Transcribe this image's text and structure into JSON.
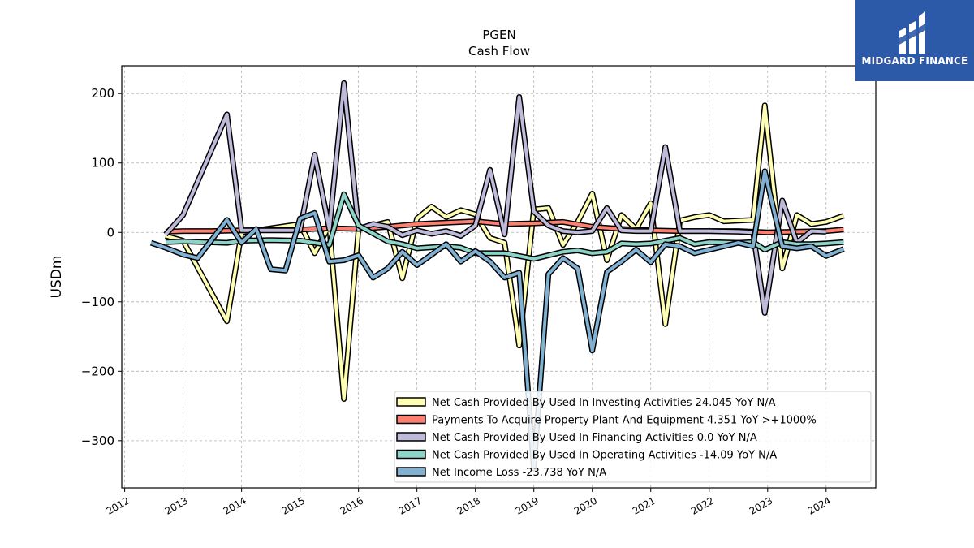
{
  "chart_data": {
    "type": "line",
    "title": "PGEN",
    "subtitle": "Cash Flow",
    "ylabel": "USDm",
    "xlabel": "",
    "ylim": [
      -368,
      240
    ],
    "xlim": [
      2011.95,
      2024.85
    ],
    "yticks": [
      200,
      100,
      0,
      -100,
      -200,
      -300
    ],
    "ytick_labels": [
      "200",
      "100",
      "0",
      "−100",
      "−200",
      "−300"
    ],
    "xticks": [
      2012,
      2013,
      2014,
      2015,
      2016,
      2017,
      2018,
      2019,
      2020,
      2021,
      2022,
      2023,
      2024
    ],
    "xtick_labels": [
      "2012",
      "2013",
      "2014",
      "2015",
      "2016",
      "2017",
      "2018",
      "2019",
      "2020",
      "2021",
      "2022",
      "2023",
      "2024"
    ],
    "grid": true,
    "legend_position": "lower-right",
    "series": [
      {
        "name": "Net Cash Provided By Used In Investing Activities  24.045 YoY N/A",
        "color": "#ffffb3",
        "points": [
          [
            2012.7,
            -5
          ],
          [
            2013.0,
            -12
          ],
          [
            2013.75,
            -128
          ],
          [
            2014.0,
            0
          ],
          [
            2015.0,
            12
          ],
          [
            2015.25,
            -30
          ],
          [
            2015.5,
            10
          ],
          [
            2015.75,
            -240
          ],
          [
            2016.0,
            5
          ],
          [
            2016.5,
            15
          ],
          [
            2016.75,
            -66
          ],
          [
            2017.0,
            20
          ],
          [
            2017.25,
            37
          ],
          [
            2017.5,
            22
          ],
          [
            2017.75,
            32
          ],
          [
            2018.0,
            26
          ],
          [
            2018.25,
            -8
          ],
          [
            2018.5,
            -15
          ],
          [
            2018.75,
            -163
          ],
          [
            2019.0,
            33
          ],
          [
            2019.25,
            35
          ],
          [
            2019.5,
            -18
          ],
          [
            2019.75,
            15
          ],
          [
            2020.0,
            56
          ],
          [
            2020.25,
            -40
          ],
          [
            2020.5,
            25
          ],
          [
            2020.75,
            5
          ],
          [
            2021.0,
            42
          ],
          [
            2021.25,
            -132
          ],
          [
            2021.5,
            17
          ],
          [
            2021.75,
            22
          ],
          [
            2022.0,
            25
          ],
          [
            2022.25,
            16
          ],
          [
            2022.75,
            18
          ],
          [
            2022.95,
            183
          ],
          [
            2023.25,
            -52
          ],
          [
            2023.5,
            25
          ],
          [
            2023.75,
            12
          ],
          [
            2024.0,
            15
          ],
          [
            2024.3,
            24
          ]
        ]
      },
      {
        "name": "Payments To Acquire Property Plant And Equipment  4.351 YoY >+1000%",
        "color": "#fb8072",
        "points": [
          [
            2012.7,
            1
          ],
          [
            2013.0,
            2
          ],
          [
            2013.5,
            2
          ],
          [
            2014.0,
            3
          ],
          [
            2015.0,
            4
          ],
          [
            2015.5,
            6
          ],
          [
            2016.0,
            5
          ],
          [
            2016.5,
            8
          ],
          [
            2017.0,
            12
          ],
          [
            2017.5,
            14
          ],
          [
            2018.0,
            16
          ],
          [
            2018.5,
            12
          ],
          [
            2019.0,
            13
          ],
          [
            2019.5,
            15
          ],
          [
            2020.0,
            8
          ],
          [
            2020.5,
            5
          ],
          [
            2021.0,
            3
          ],
          [
            2021.5,
            2
          ],
          [
            2022.0,
            2
          ],
          [
            2022.5,
            2
          ],
          [
            2023.0,
            0
          ],
          [
            2023.5,
            1
          ],
          [
            2024.0,
            2
          ],
          [
            2024.3,
            4
          ]
        ]
      },
      {
        "name": "Net Cash Provided By Used In Financing Activities  0.0 YoY N/A",
        "color": "#bebada",
        "points": [
          [
            2012.7,
            -3
          ],
          [
            2013.0,
            25
          ],
          [
            2013.75,
            170
          ],
          [
            2014.0,
            3
          ],
          [
            2015.0,
            3
          ],
          [
            2015.25,
            112
          ],
          [
            2015.5,
            5
          ],
          [
            2015.75,
            215
          ],
          [
            2016.0,
            5
          ],
          [
            2016.25,
            12
          ],
          [
            2016.5,
            8
          ],
          [
            2016.75,
            -4
          ],
          [
            2017.0,
            3
          ],
          [
            2017.25,
            -2
          ],
          [
            2017.5,
            2
          ],
          [
            2017.75,
            -5
          ],
          [
            2018.0,
            10
          ],
          [
            2018.25,
            90
          ],
          [
            2018.5,
            -3
          ],
          [
            2018.75,
            195
          ],
          [
            2019.0,
            30
          ],
          [
            2019.25,
            10
          ],
          [
            2019.5,
            2
          ],
          [
            2019.75,
            0
          ],
          [
            2020.0,
            2
          ],
          [
            2020.25,
            35
          ],
          [
            2020.5,
            3
          ],
          [
            2020.75,
            2
          ],
          [
            2021.0,
            2
          ],
          [
            2021.25,
            123
          ],
          [
            2021.5,
            2
          ],
          [
            2021.75,
            2
          ],
          [
            2022.0,
            2
          ],
          [
            2022.5,
            1
          ],
          [
            2022.75,
            0
          ],
          [
            2022.95,
            -116
          ],
          [
            2023.25,
            46
          ],
          [
            2023.5,
            -15
          ],
          [
            2023.75,
            2
          ],
          [
            2024.0,
            1
          ]
        ]
      },
      {
        "name": "Net Cash Provided By Used In Operating Activities  -14.09 YoY N/A",
        "color": "#8dd3c7",
        "points": [
          [
            2012.7,
            -14
          ],
          [
            2013.0,
            -13
          ],
          [
            2013.75,
            -15
          ],
          [
            2014.0,
            -12
          ],
          [
            2014.5,
            -11
          ],
          [
            2015.0,
            -12
          ],
          [
            2015.5,
            -18
          ],
          [
            2015.75,
            55
          ],
          [
            2016.0,
            10
          ],
          [
            2016.5,
            -13
          ],
          [
            2016.75,
            -17
          ],
          [
            2017.0,
            -23
          ],
          [
            2017.5,
            -20
          ],
          [
            2017.75,
            -22
          ],
          [
            2018.0,
            -30
          ],
          [
            2018.5,
            -30
          ],
          [
            2019.0,
            -38
          ],
          [
            2019.5,
            -28
          ],
          [
            2019.75,
            -26
          ],
          [
            2020.0,
            -30
          ],
          [
            2020.25,
            -28
          ],
          [
            2020.5,
            -16
          ],
          [
            2020.75,
            -17
          ],
          [
            2021.0,
            -16
          ],
          [
            2021.5,
            -8
          ],
          [
            2021.75,
            -17
          ],
          [
            2022.0,
            -14
          ],
          [
            2022.5,
            -15
          ],
          [
            2022.75,
            -14
          ],
          [
            2022.95,
            -25
          ],
          [
            2023.25,
            -14
          ],
          [
            2023.5,
            -17
          ],
          [
            2023.75,
            -17
          ],
          [
            2024.0,
            -16
          ],
          [
            2024.3,
            -14
          ]
        ]
      },
      {
        "name": "Net Income Loss  -23.738 YoY N/A",
        "color": "#80b1d3",
        "points": [
          [
            2012.45,
            -15
          ],
          [
            2012.7,
            -22
          ],
          [
            2013.0,
            -32
          ],
          [
            2013.25,
            -37
          ],
          [
            2013.75,
            18
          ],
          [
            2014.0,
            -15
          ],
          [
            2014.25,
            5
          ],
          [
            2014.5,
            -53
          ],
          [
            2014.75,
            -55
          ],
          [
            2015.0,
            20
          ],
          [
            2015.25,
            28
          ],
          [
            2015.5,
            -42
          ],
          [
            2015.75,
            -40
          ],
          [
            2016.0,
            -33
          ],
          [
            2016.25,
            -65
          ],
          [
            2016.5,
            -52
          ],
          [
            2016.75,
            -28
          ],
          [
            2017.0,
            -47
          ],
          [
            2017.5,
            -17
          ],
          [
            2017.75,
            -42
          ],
          [
            2018.0,
            -27
          ],
          [
            2018.25,
            -42
          ],
          [
            2018.5,
            -65
          ],
          [
            2018.75,
            -58
          ],
          [
            2019.0,
            -340
          ],
          [
            2019.25,
            -60
          ],
          [
            2019.5,
            -37
          ],
          [
            2019.75,
            -52
          ],
          [
            2020.0,
            -170
          ],
          [
            2020.25,
            -57
          ],
          [
            2020.5,
            -42
          ],
          [
            2020.75,
            -25
          ],
          [
            2021.0,
            -43
          ],
          [
            2021.25,
            -17
          ],
          [
            2021.5,
            -20
          ],
          [
            2021.75,
            -30
          ],
          [
            2022.0,
            -25
          ],
          [
            2022.5,
            -15
          ],
          [
            2022.75,
            -20
          ],
          [
            2022.95,
            88
          ],
          [
            2023.25,
            -20
          ],
          [
            2023.5,
            -23
          ],
          [
            2023.75,
            -20
          ],
          [
            2024.0,
            -34
          ],
          [
            2024.3,
            -24
          ]
        ]
      }
    ]
  },
  "logo": {
    "text": "MIDGARD FINANCE"
  }
}
